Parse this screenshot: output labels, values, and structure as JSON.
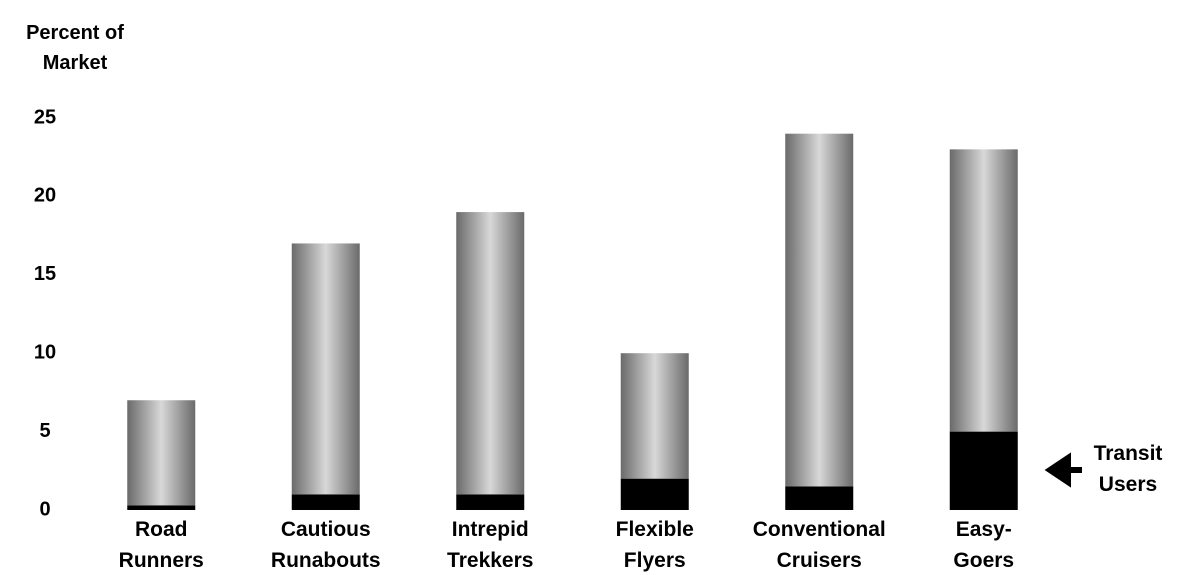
{
  "chart_data": {
    "type": "stacked_bar",
    "y_label": "Percent of Market",
    "categories": [
      "Road Runners",
      "Cautious Runabouts",
      "Intrepid Trekkers",
      "Flexible Flyers",
      "Conventional Cruisers",
      "Easy-Goers"
    ],
    "series": [
      {
        "name": "Transit Users",
        "color": "#000000",
        "values": [
          0.3,
          1,
          1,
          2,
          1.5,
          5
        ]
      },
      {
        "color": "#8a8a8a",
        "values": [
          6.7,
          16,
          18,
          8,
          22.5,
          18
        ]
      }
    ],
    "ylim": [
      0,
      25
    ],
    "yticks": [
      0,
      5,
      10,
      15,
      20,
      25
    ]
  }
}
